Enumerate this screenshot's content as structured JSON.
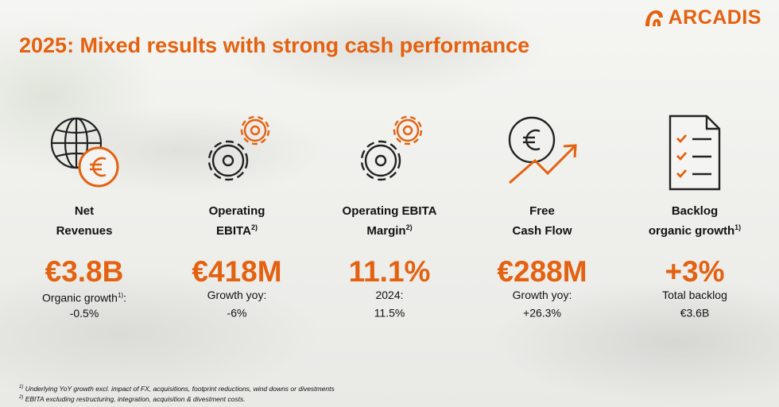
{
  "brand": {
    "name": "ARCADIS",
    "accent": "#e4610f"
  },
  "title": "2025: Mixed results with strong cash performance",
  "kpis": [
    {
      "icon": "globe-euro-icon",
      "label": "Net\nRevenues",
      "label_sup": "",
      "value": "€3.8B",
      "sub_line1": "Organic growth",
      "sub_sup": "1)",
      "sub_rest": ":\n-0.5%"
    },
    {
      "icon": "gears-icon",
      "label": "Operating\nEBITA",
      "label_sup": "2)",
      "value": "€418M",
      "sub_line1": "Growth yoy:\n-6%",
      "sub_sup": "",
      "sub_rest": ""
    },
    {
      "icon": "gears-icon",
      "label": "Operating EBITA\nMargin",
      "label_sup": "2)",
      "value": "11.1%",
      "sub_line1": "2024:\n11.5%",
      "sub_sup": "",
      "sub_rest": ""
    },
    {
      "icon": "euro-growth-icon",
      "label": "Free\nCash Flow",
      "label_sup": "",
      "value": "€288M",
      "sub_line1": "Growth yoy:\n+26.3%",
      "sub_sup": "",
      "sub_rest": ""
    },
    {
      "icon": "checklist-icon",
      "label": "Backlog\norganic growth",
      "label_sup": "1)",
      "value": "+3%",
      "sub_line1": "Total backlog\n€3.6B",
      "sub_sup": "",
      "sub_rest": ""
    }
  ],
  "footnotes": [
    {
      "marker": "1)",
      "text": " Underlying YoY growth excl. impact of FX, acquisitions, footprint reductions, wind downs or divestments"
    },
    {
      "marker": "2)",
      "text": " EBITA excluding restructuring, integration, acquisition & divestment costs."
    }
  ]
}
